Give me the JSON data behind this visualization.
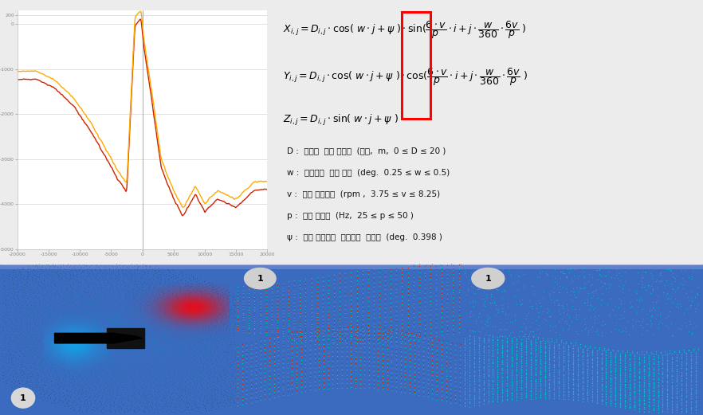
{
  "bg_outer": "#3a6bbf",
  "bg_inner": "#ececec",
  "chart_bg": "#ffffff",
  "line1_color": "#cc2200",
  "line2_color": "#ffaa00",
  "x_ticks": [
    -20000,
    -15000,
    -10000,
    -5000,
    0,
    5000,
    10000,
    15000,
    20000
  ],
  "y_ticks": [
    200,
    0,
    -1000,
    -2000,
    -3000,
    -4000,
    -5000
  ],
  "desc1": "D :  센서의  출력 데이터  (거리,  m,  0 ≤ D ≤ 20 )",
  "desc2": "w :  포인트간  스캔 간격  (deg.  0.25 ≤ w ≤ 0.5)",
  "desc3": "v :  기구 회전속도  (rpm ,  3.75 ≤ v ≤ 8.25)",
  "desc4": "p :  초당 패킷수  (Hz,  25 ≤ p ≤ 50 )",
  "desc5": "ψ :  기구 회전축과  센서축의  오차각  (deg.  0.398 )",
  "badge_color": "#d0d0d0"
}
